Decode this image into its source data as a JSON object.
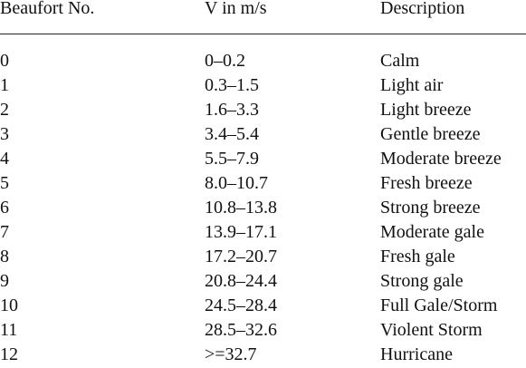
{
  "table": {
    "header": [
      "Beaufort No.",
      "V in m/s",
      "Description"
    ],
    "rows": [
      [
        "0",
        "0–0.2",
        "Calm"
      ],
      [
        "1",
        "0.3–1.5",
        "Light air"
      ],
      [
        "2",
        "1.6–3.3",
        "Light breeze"
      ],
      [
        "3",
        "3.4–5.4",
        "Gentle breeze"
      ],
      [
        "4",
        "5.5–7.9",
        "Moderate breeze"
      ],
      [
        "5",
        "8.0–10.7",
        "Fresh breeze"
      ],
      [
        "6",
        "10.8–13.8",
        "Strong breeze"
      ],
      [
        "7",
        "13.9–17.1",
        "Moderate gale"
      ],
      [
        "8",
        "17.2–20.7",
        "Fresh gale"
      ],
      [
        "9",
        "20.8–24.4",
        "Strong gale"
      ],
      [
        "10",
        "24.5–28.4",
        "Full Gale/Storm"
      ],
      [
        "11",
        "28.5–32.6",
        "Violent Storm"
      ],
      [
        "12",
        ">=32.7",
        "Hurricane"
      ]
    ]
  }
}
